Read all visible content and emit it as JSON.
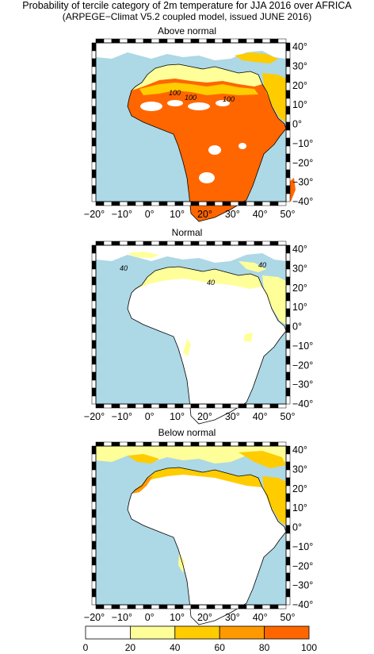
{
  "title_line1": "Probability of tercile category of 2m temperature for JJA 2016 over AFRICA",
  "title_line2": "(ARPEGE−Climat V5.2 coupled model, issued JUNE  2016)",
  "panels": [
    {
      "title": "Above normal",
      "contour_labels": [
        "100",
        "100",
        "100"
      ]
    },
    {
      "title": "Normal",
      "contour_labels": [
        "40",
        "40",
        "40"
      ]
    },
    {
      "title": "Below normal",
      "contour_labels": []
    }
  ],
  "lon_ticks": [
    "−20°",
    "−10°",
    "0°",
    "10°",
    "20°",
    "30°",
    "40°",
    "50°"
  ],
  "lat_ticks": [
    "40°",
    "30°",
    "20°",
    "10°",
    "0°",
    "−10°",
    "−20°",
    "−30°",
    "−40°"
  ],
  "colorbar": {
    "ticks": [
      "0",
      "20",
      "40",
      "60",
      "80",
      "100"
    ],
    "colors": [
      "#ffffff",
      "#ffff99",
      "#ffcc00",
      "#ff9900",
      "#ff6600"
    ]
  },
  "colors": {
    "ocean": "#add8e6",
    "land": "#ffffff"
  }
}
